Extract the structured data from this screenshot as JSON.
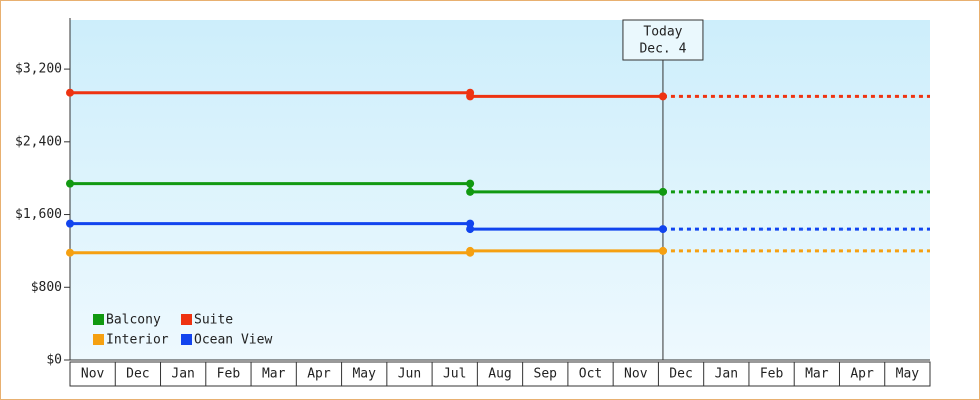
{
  "chart_data": {
    "type": "line",
    "categories": [
      "Nov",
      "Dec",
      "Jan",
      "Feb",
      "Mar",
      "Apr",
      "May",
      "Jun",
      "Jul",
      "Aug",
      "Sep",
      "Oct",
      "Nov",
      "Dec",
      "Jan",
      "Feb",
      "Mar",
      "Apr",
      "May"
    ],
    "xlim": [
      0,
      19
    ],
    "x": [
      0,
      8.84,
      8.84,
      13.1,
      19
    ],
    "series": [
      {
        "name": "Balcony",
        "color": "#119911",
        "values": [
          1940,
          1940,
          1850,
          1850,
          1850
        ]
      },
      {
        "name": "Suite",
        "color": "#ee3311",
        "values": [
          2940,
          2940,
          2900,
          2900,
          2900
        ]
      },
      {
        "name": "Interior",
        "color": "#f5a011",
        "values": [
          1180,
          1180,
          1200,
          1200,
          1200
        ]
      },
      {
        "name": "Ocean View",
        "color": "#1144ee",
        "values": [
          1500,
          1500,
          1440,
          1440,
          1440
        ]
      }
    ],
    "today": {
      "x": 13.1,
      "lines": [
        "Today",
        "Dec. 4"
      ]
    },
    "ylim": [
      0,
      3740
    ],
    "yticks": [
      {
        "value": 0,
        "label": "$0"
      },
      {
        "value": 800,
        "label": "$800"
      },
      {
        "value": 1600,
        "label": "$1,600"
      },
      {
        "value": 2400,
        "label": "$2,400"
      },
      {
        "value": 3200,
        "label": "$3,200"
      }
    ]
  }
}
